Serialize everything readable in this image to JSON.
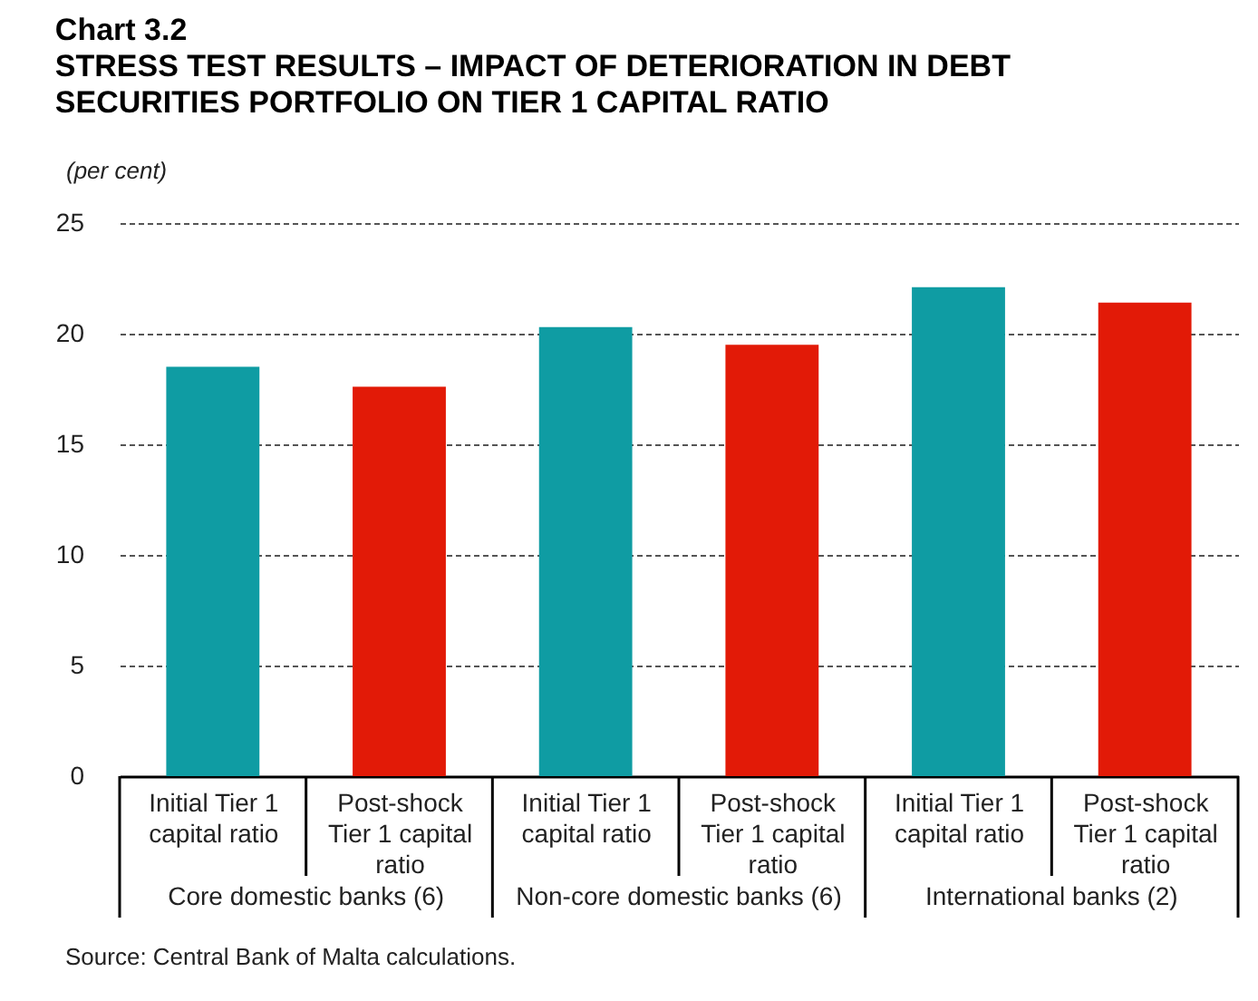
{
  "chart_data": {
    "type": "bar",
    "title": "Chart 3.2",
    "subtitle": "STRESS TEST RESULTS – IMPACT OF DETERIORATION IN DEBT SECURITIES PORTFOLIO ON TIER 1 CAPITAL RATIO",
    "ylabel": "(per cent)",
    "categories": [
      "Initial Tier 1 capital ratio",
      "Post-shock Tier 1 capital ratio",
      "Initial Tier 1 capital ratio",
      "Post-shock Tier 1 capital ratio",
      "Initial Tier 1 capital ratio",
      "Post-shock Tier 1 capital ratio"
    ],
    "values": [
      18.5,
      17.6,
      20.3,
      19.5,
      22.1,
      21.4
    ],
    "colors": [
      "#0f9ca3",
      "#e21a07",
      "#0f9ca3",
      "#e21a07",
      "#0f9ca3",
      "#e21a07"
    ],
    "ylim": [
      0,
      25
    ],
    "yticks": [
      0,
      5,
      10,
      15,
      20,
      25
    ],
    "grid": "y",
    "annotations": [
      "Core domestic banks (6)",
      "Non-core domestic banks (6)",
      "International banks (2)",
      "Source: Central Bank of Malta calculations."
    ]
  }
}
